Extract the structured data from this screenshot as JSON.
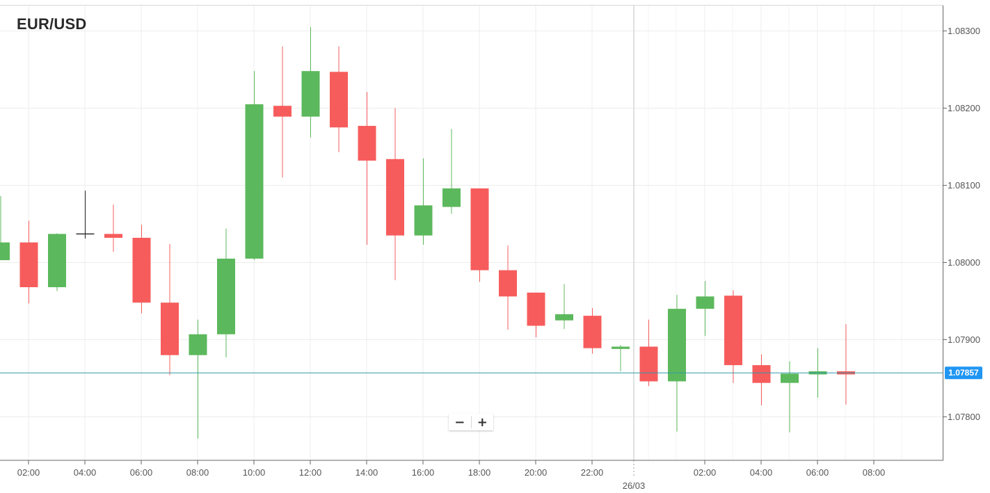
{
  "chart_data": {
    "type": "candlestick",
    "title": "EUR/USD",
    "x_ticks": [
      "02:00",
      "04:00",
      "06:00",
      "08:00",
      "10:00",
      "12:00",
      "14:00",
      "16:00",
      "18:00",
      "20:00",
      "22:00",
      "02:00",
      "04:00",
      "06:00",
      "08:00"
    ],
    "date_label": "26/03",
    "y_ticks": [
      "1.07800",
      "1.07900",
      "1.08000",
      "1.08100",
      "1.08200",
      "1.08300"
    ],
    "ylim": [
      1.0774,
      1.0833
    ],
    "current_price": 1.07857,
    "current_price_label": "1.07857",
    "grid": true,
    "colors": {
      "up": "#5cb85c",
      "down": "#f75c5c",
      "neutral": "#222222",
      "current_line": "#2e9aa8",
      "price_tag": "#2196f3"
    },
    "candles": [
      {
        "time": "01:00",
        "open": 1.08003,
        "high": 1.08086,
        "low": 1.08003,
        "close": 1.08026
      },
      {
        "time": "02:00",
        "open": 1.08026,
        "high": 1.08054,
        "low": 1.07947,
        "close": 1.07968
      },
      {
        "time": "03:00",
        "open": 1.07968,
        "high": 1.08038,
        "low": 1.07963,
        "close": 1.08037
      },
      {
        "time": "04:00",
        "open": 1.08037,
        "high": 1.08093,
        "low": 1.08031,
        "close": 1.08037
      },
      {
        "time": "05:00",
        "open": 1.08037,
        "high": 1.08075,
        "low": 1.08014,
        "close": 1.08032
      },
      {
        "time": "06:00",
        "open": 1.08032,
        "high": 1.08049,
        "low": 1.07934,
        "close": 1.07948
      },
      {
        "time": "07:00",
        "open": 1.07948,
        "high": 1.08024,
        "low": 1.07854,
        "close": 1.0788
      },
      {
        "time": "08:00",
        "open": 1.0788,
        "high": 1.07926,
        "low": 1.07772,
        "close": 1.07907
      },
      {
        "time": "09:00",
        "open": 1.07907,
        "high": 1.08044,
        "low": 1.07877,
        "close": 1.08005
      },
      {
        "time": "10:00",
        "open": 1.08005,
        "high": 1.08248,
        "low": 1.08003,
        "close": 1.08205
      },
      {
        "time": "11:00",
        "open": 1.08203,
        "high": 1.0828,
        "low": 1.0811,
        "close": 1.08189
      },
      {
        "time": "12:00",
        "open": 1.08189,
        "high": 1.08305,
        "low": 1.08162,
        "close": 1.08248
      },
      {
        "time": "13:00",
        "open": 1.08247,
        "high": 1.0828,
        "low": 1.08143,
        "close": 1.08175
      },
      {
        "time": "14:00",
        "open": 1.08177,
        "high": 1.08221,
        "low": 1.08023,
        "close": 1.08132
      },
      {
        "time": "15:00",
        "open": 1.08134,
        "high": 1.082,
        "low": 1.07977,
        "close": 1.08035
      },
      {
        "time": "16:00",
        "open": 1.08035,
        "high": 1.08135,
        "low": 1.08023,
        "close": 1.08074
      },
      {
        "time": "17:00",
        "open": 1.08072,
        "high": 1.08173,
        "low": 1.08063,
        "close": 1.08096
      },
      {
        "time": "18:00",
        "open": 1.08096,
        "high": 1.08096,
        "low": 1.07975,
        "close": 1.0799
      },
      {
        "time": "19:00",
        "open": 1.0799,
        "high": 1.08022,
        "low": 1.07913,
        "close": 1.07956
      },
      {
        "time": "20:00",
        "open": 1.07961,
        "high": 1.07961,
        "low": 1.07903,
        "close": 1.07918
      },
      {
        "time": "21:00",
        "open": 1.07925,
        "high": 1.07972,
        "low": 1.07914,
        "close": 1.07933
      },
      {
        "time": "22:00",
        "open": 1.07931,
        "high": 1.07941,
        "low": 1.07882,
        "close": 1.07889
      },
      {
        "time": "23:00",
        "open": 1.07888,
        "high": 1.07893,
        "low": 1.07859,
        "close": 1.07891
      },
      {
        "time": "00:00",
        "open": 1.07891,
        "high": 1.07926,
        "low": 1.0784,
        "close": 1.07846
      },
      {
        "time": "01:00",
        "open": 1.07846,
        "high": 1.07958,
        "low": 1.07781,
        "close": 1.0794
      },
      {
        "time": "02:00",
        "open": 1.0794,
        "high": 1.07976,
        "low": 1.07905,
        "close": 1.07956
      },
      {
        "time": "03:00",
        "open": 1.07957,
        "high": 1.07964,
        "low": 1.07844,
        "close": 1.07867
      },
      {
        "time": "04:00",
        "open": 1.07867,
        "high": 1.07881,
        "low": 1.07815,
        "close": 1.07844
      },
      {
        "time": "05:00",
        "open": 1.07844,
        "high": 1.07872,
        "low": 1.0778,
        "close": 1.07856
      },
      {
        "time": "06:00",
        "open": 1.07855,
        "high": 1.07889,
        "low": 1.07825,
        "close": 1.07859
      },
      {
        "time": "07:00",
        "open": 1.07859,
        "high": 1.0792,
        "low": 1.07816,
        "close": 1.07855
      }
    ]
  },
  "zoom": {
    "minus_label": "−",
    "plus_label": "+"
  }
}
